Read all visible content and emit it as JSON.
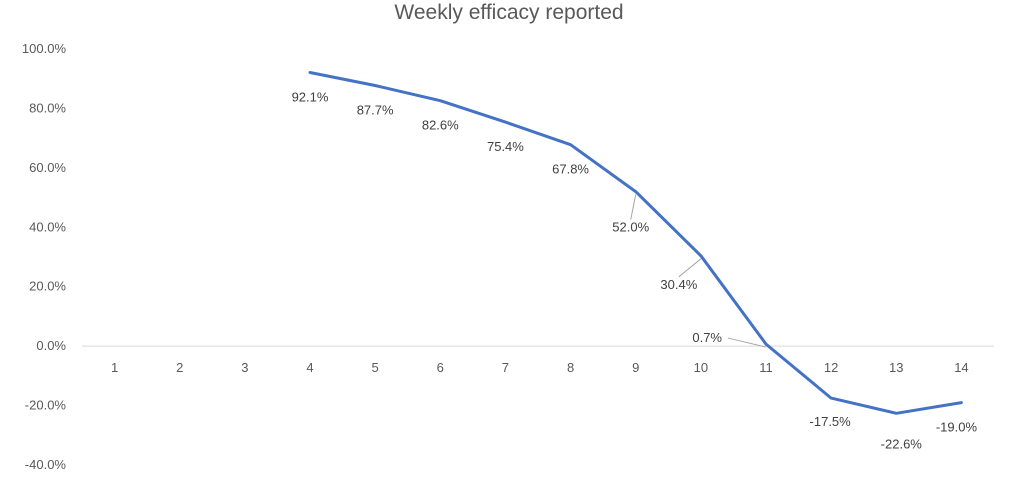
{
  "chart_data": {
    "type": "line",
    "title": "Weekly efficacy reported",
    "xlabel": "",
    "ylabel": "",
    "categories": [
      "1",
      "2",
      "3",
      "4",
      "5",
      "6",
      "7",
      "8",
      "9",
      "10",
      "11",
      "12",
      "13",
      "14"
    ],
    "y_ticks": [
      "100.0%",
      "80.0%",
      "60.0%",
      "40.0%",
      "20.0%",
      "0.0%",
      "-20.0%",
      "-40.0%"
    ],
    "ylim": [
      -40,
      100
    ],
    "grid": false,
    "legend": "none",
    "series": [
      {
        "values": [
          null,
          null,
          null,
          92.1,
          87.7,
          82.6,
          75.4,
          67.8,
          52.0,
          30.4,
          0.7,
          -17.5,
          -22.6,
          -19.0
        ],
        "labels": [
          "",
          "",
          "",
          "92.1%",
          "87.7%",
          "82.6%",
          "75.4%",
          "67.8%",
          "52.0%",
          "30.4%",
          "0.7%",
          "-17.5%",
          "-22.6%",
          "-19.0%"
        ],
        "color": "#4472C4"
      }
    ],
    "colors": {
      "axis": "#D9D9D9",
      "text": "#595959",
      "leader": "#A6A6A6"
    }
  }
}
